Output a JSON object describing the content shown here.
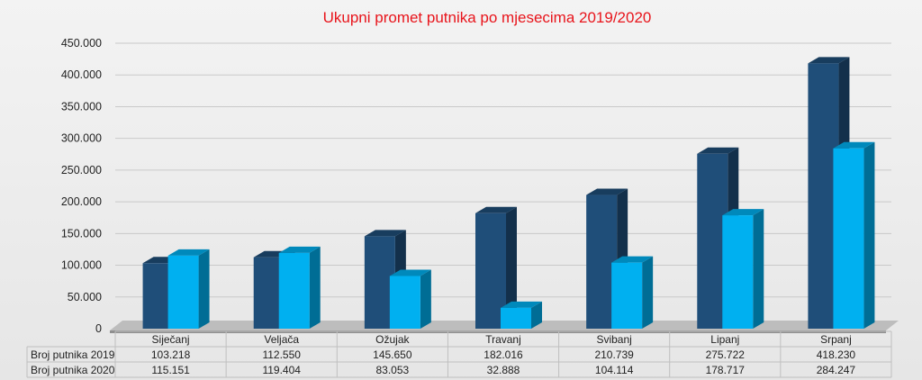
{
  "chart_data": {
    "type": "bar",
    "title": "Ukupni promet putnika po mjesecima 2019/2020",
    "categories": [
      "Siječanj",
      "Veljača",
      "Ožujak",
      "Travanj",
      "Svibanj",
      "Lipanj",
      "Srpanj"
    ],
    "series": [
      {
        "name": "Broj putnika 2019",
        "values": [
          103218,
          112550,
          145650,
          182016,
          210739,
          275722,
          418230
        ],
        "labels": [
          "103.218",
          "112.550",
          "145.650",
          "182.016",
          "210.739",
          "275.722",
          "418.230"
        ],
        "color": "#1f4e79"
      },
      {
        "name": "Broj putnika 2020",
        "values": [
          115151,
          119404,
          83053,
          32888,
          104114,
          178717,
          284247
        ],
        "labels": [
          "115.151",
          "119.404",
          "83.053",
          "32.888",
          "104.114",
          "178.717",
          "284.247"
        ],
        "color": "#00b0f0"
      }
    ],
    "yticks": [
      "0",
      "50.000",
      "100.000",
      "150.000",
      "200.000",
      "250.000",
      "300.000",
      "350.000",
      "400.000",
      "450.000"
    ],
    "ylim": [
      0,
      450000
    ],
    "grid": true,
    "legend": "data table below chart"
  }
}
